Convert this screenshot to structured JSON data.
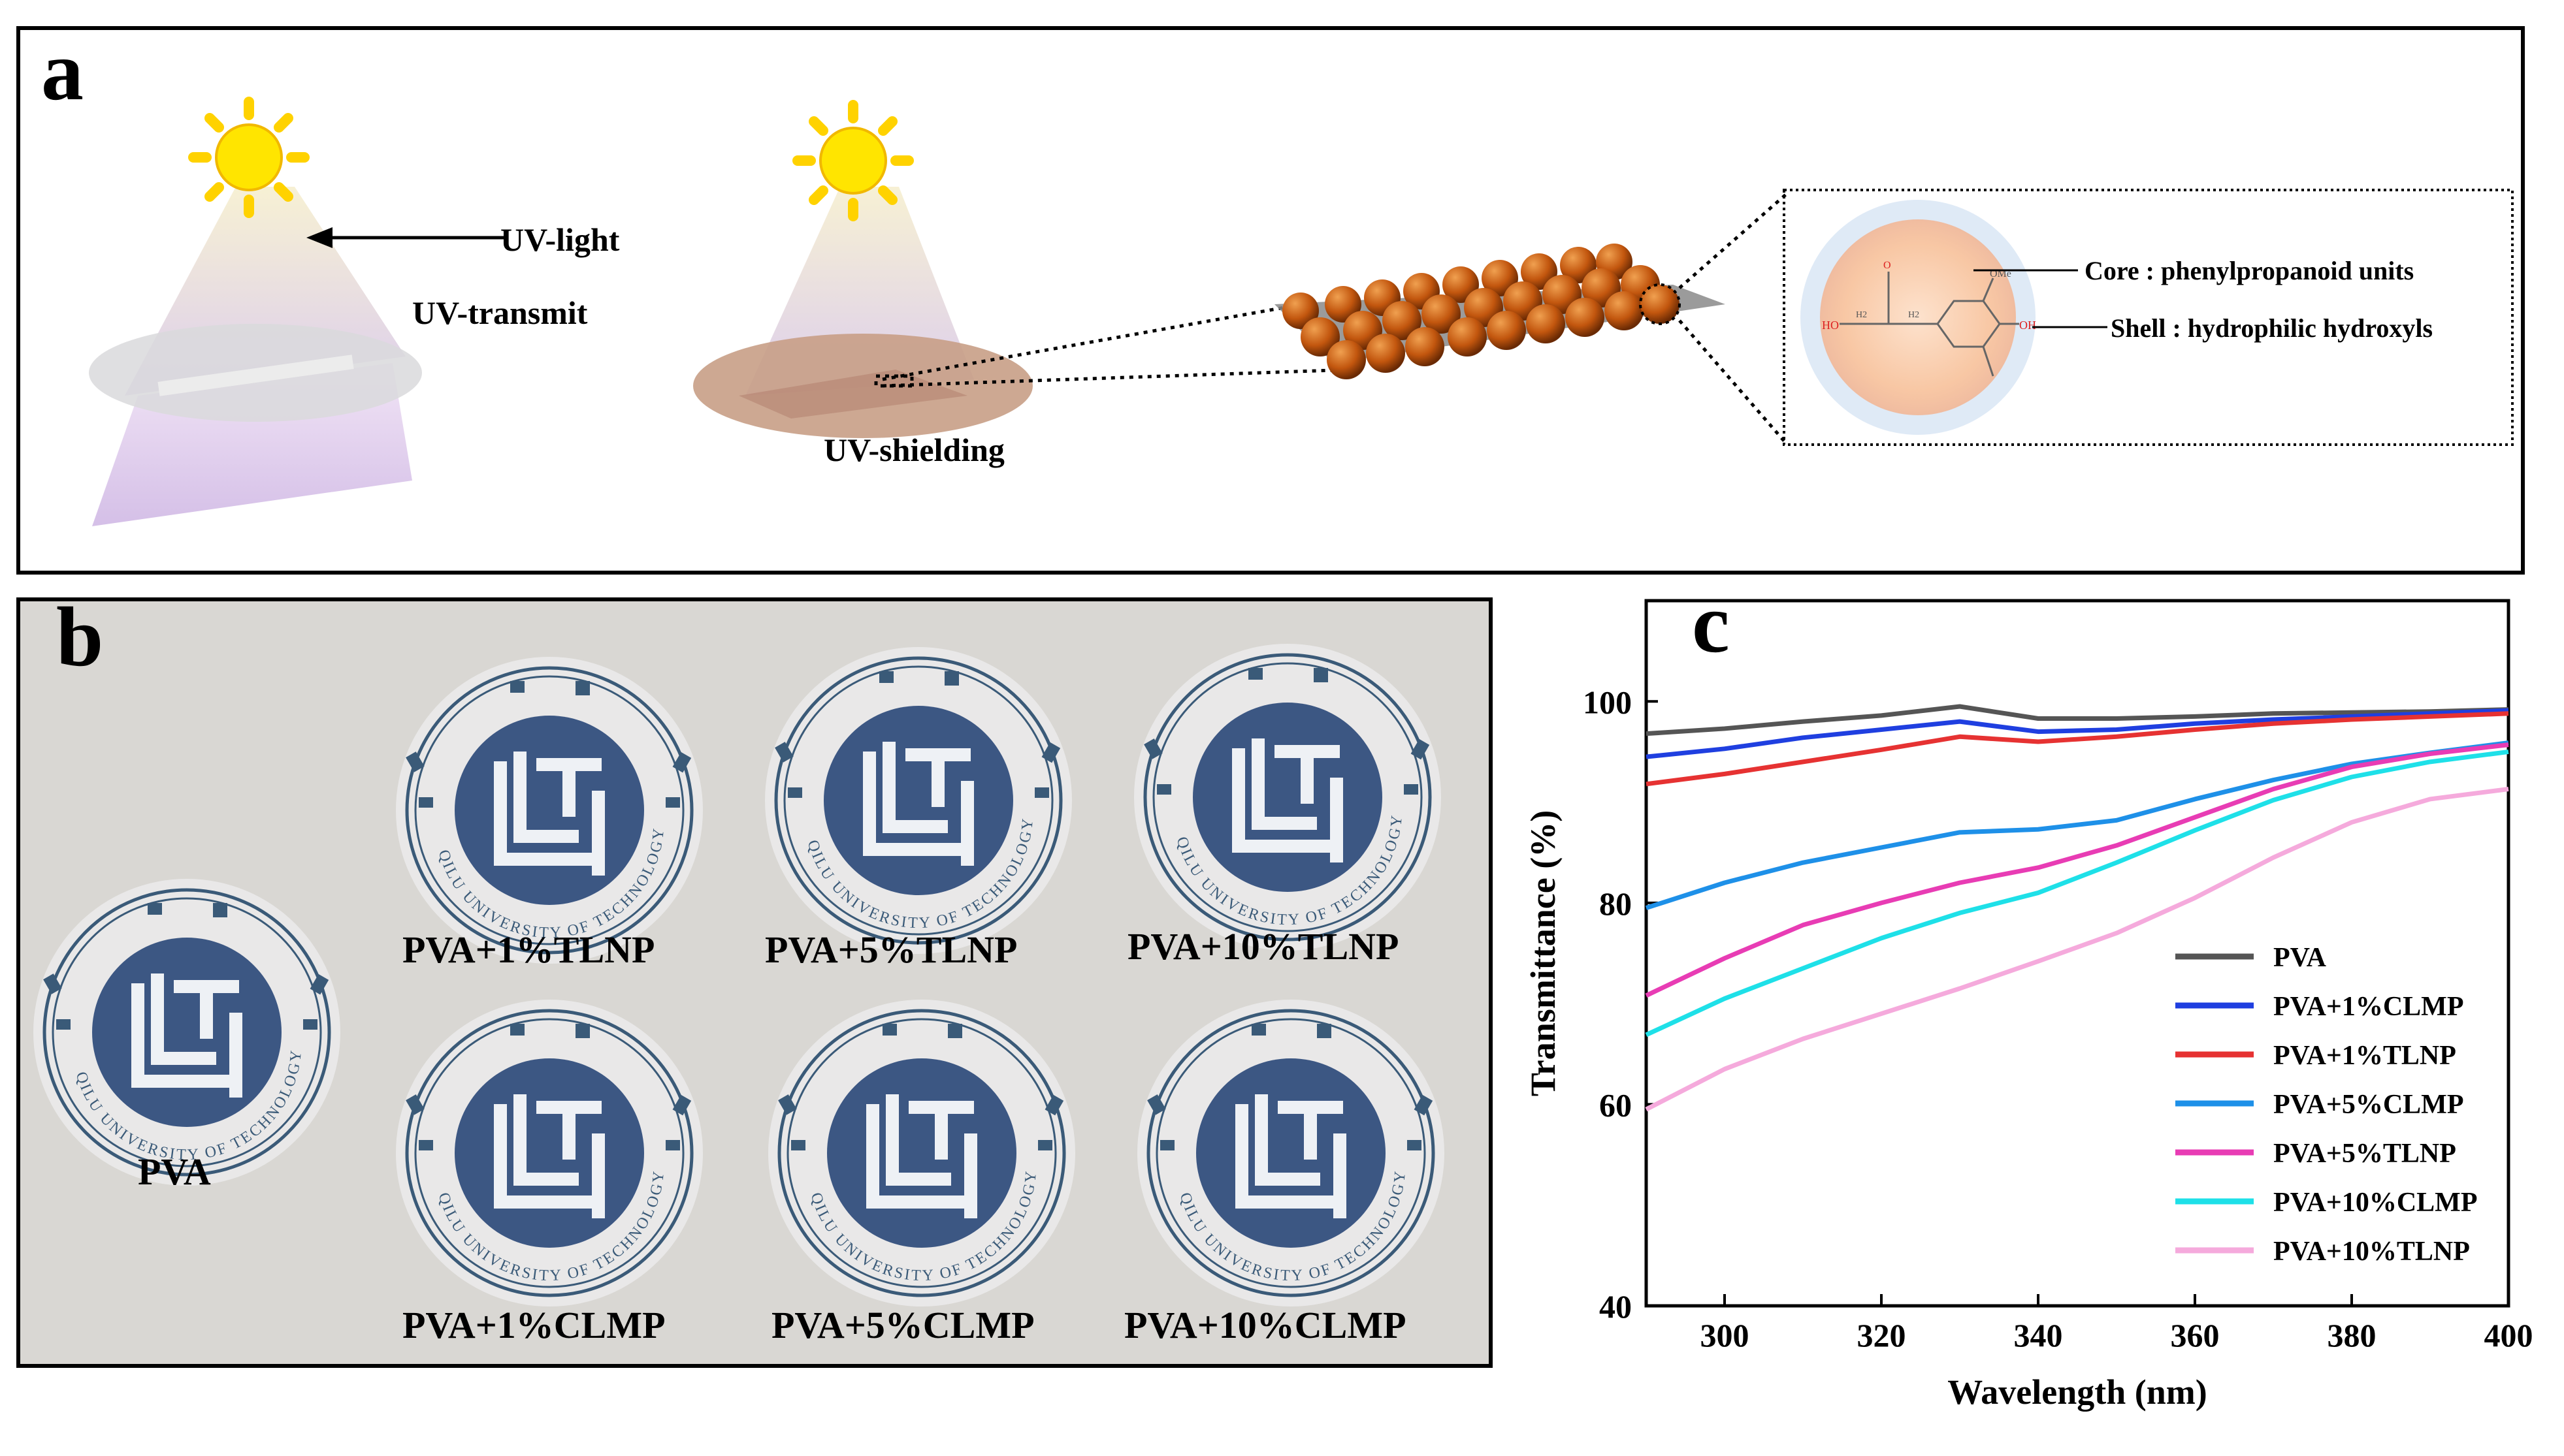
{
  "panel_a": {
    "letter": "a",
    "uv_light": "UV-light",
    "uv_transmit": "UV-transmit",
    "uv_shielding": "UV-shielding",
    "core_label": "Core : phenylpropanoid units",
    "shell_label": "Shell : hydrophilic hydroxyls",
    "molecule_labels": {
      "ho": "HO",
      "oh": "OH",
      "ome": "OMe",
      "h2a": "H2",
      "h2b": "H2",
      "o_top": "O"
    }
  },
  "panel_b": {
    "letter": "b",
    "samples": [
      {
        "label": "PVA"
      },
      {
        "label": "PVA+1%TLNP"
      },
      {
        "label": "PVA+5%TLNP"
      },
      {
        "label": "PVA+10%TLNP"
      },
      {
        "label": "PVA+1%CLMP"
      },
      {
        "label": "PVA+5%CLMP"
      },
      {
        "label": "PVA+10%CLMP"
      }
    ],
    "logo_ring_text": "QILU UNIVERSITY OF TECHNOLOGY"
  },
  "panel_c": {
    "letter": "c",
    "colors": {
      "bg": "#ffffff",
      "axis": "#000000"
    }
  },
  "chart_data": {
    "type": "line",
    "title": "",
    "xlabel": "Wavelength (nm)",
    "ylabel": "Transmittance (%)",
    "xlim": [
      290,
      400
    ],
    "ylim": [
      40,
      110
    ],
    "xticks": [
      300,
      320,
      340,
      360,
      380,
      400
    ],
    "yticks": [
      40,
      60,
      80,
      100
    ],
    "legend_position": "bottom-right",
    "x": [
      290,
      300,
      310,
      320,
      330,
      340,
      350,
      360,
      370,
      380,
      390,
      400
    ],
    "series": [
      {
        "name": "PVA",
        "color": "#555555",
        "values": [
          96.8,
          97.3,
          98.0,
          98.6,
          99.5,
          98.3,
          98.3,
          98.5,
          98.8,
          98.9,
          99.0,
          99.2
        ]
      },
      {
        "name": "PVA+1%CLMP",
        "color": "#1f3fe0",
        "values": [
          94.5,
          95.3,
          96.4,
          97.2,
          98.0,
          97.0,
          97.2,
          97.8,
          98.2,
          98.5,
          98.8,
          99.1
        ]
      },
      {
        "name": "PVA+1%TLNP",
        "color": "#e63232",
        "values": [
          91.8,
          92.8,
          94.0,
          95.2,
          96.5,
          96.0,
          96.5,
          97.2,
          97.8,
          98.2,
          98.5,
          98.8
        ]
      },
      {
        "name": "PVA+5%CLMP",
        "color": "#1e90e8",
        "values": [
          79.5,
          82.0,
          84.0,
          85.5,
          87.0,
          87.3,
          88.2,
          90.3,
          92.2,
          93.8,
          94.9,
          95.9
        ]
      },
      {
        "name": "PVA+5%TLNP",
        "color": "#e83cb4",
        "values": [
          70.8,
          74.5,
          77.8,
          80.0,
          82.0,
          83.5,
          85.7,
          88.5,
          91.3,
          93.5,
          94.8,
          95.7
        ]
      },
      {
        "name": "PVA+10%CLMP",
        "color": "#1ee0e8",
        "values": [
          66.9,
          70.5,
          73.5,
          76.5,
          79.0,
          81.0,
          84.0,
          87.2,
          90.2,
          92.5,
          94.0,
          95.0
        ]
      },
      {
        "name": "PVA+10%TLNP",
        "color": "#f5aadc",
        "values": [
          59.5,
          63.5,
          66.5,
          69.0,
          71.5,
          74.2,
          77.0,
          80.5,
          84.5,
          88.0,
          90.3,
          91.3
        ]
      }
    ]
  }
}
